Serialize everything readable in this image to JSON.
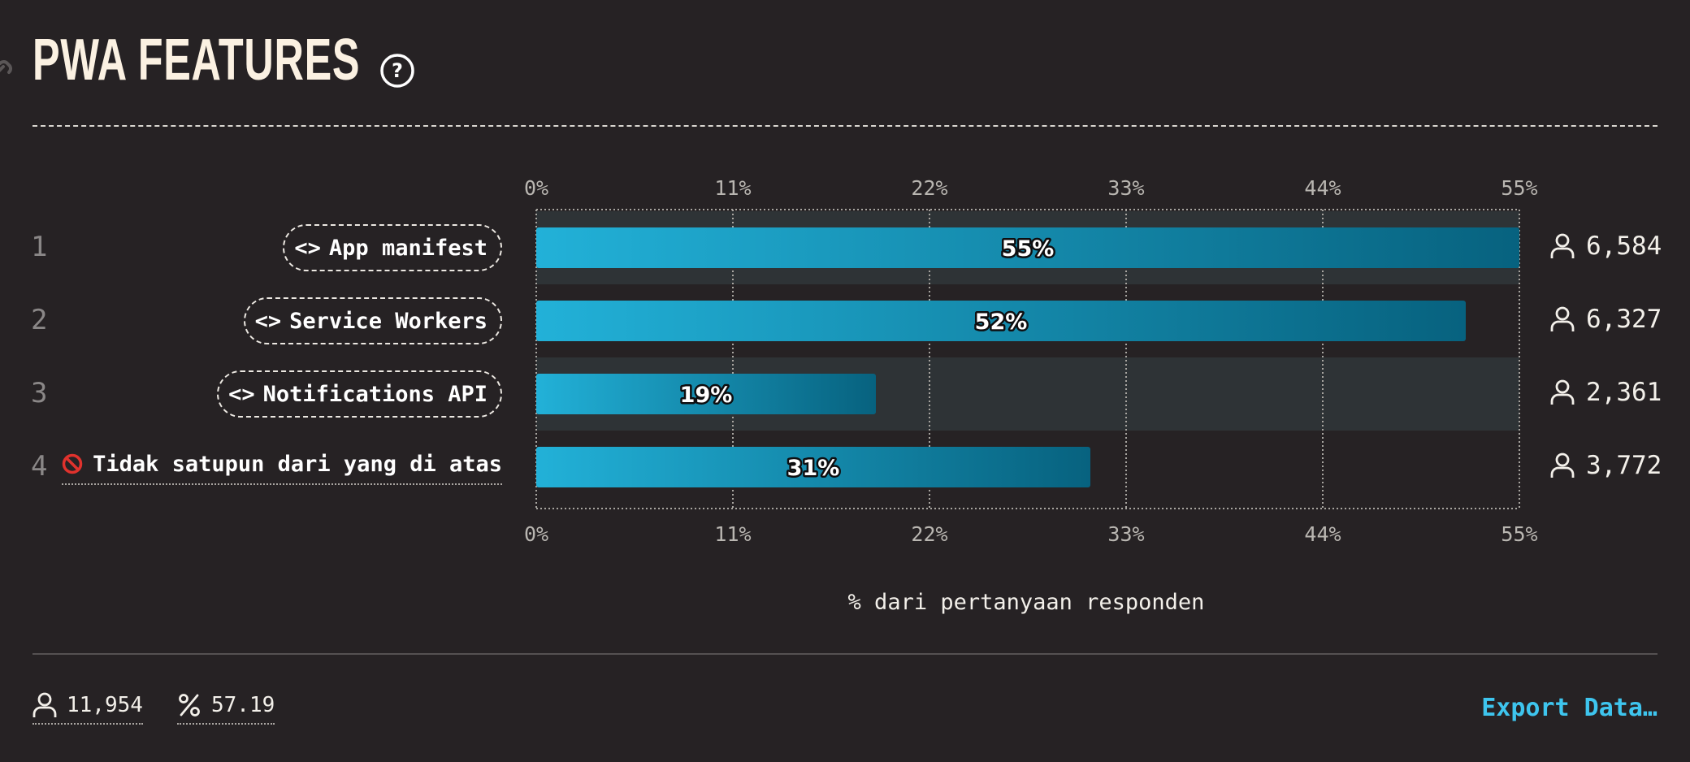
{
  "header": {
    "title": "PWA FEATURES",
    "help_icon": "question-circle-icon",
    "link_icon": "link-icon"
  },
  "chart_data": {
    "type": "bar",
    "orientation": "horizontal",
    "categories": [
      "App manifest",
      "Service Workers",
      "Notifications API",
      "Tidak satupun dari yang di atas"
    ],
    "values": [
      55,
      52,
      19,
      31
    ],
    "value_labels": [
      "55%",
      "52%",
      "19%",
      "31%"
    ],
    "ranks": [
      "1",
      "2",
      "3",
      "4"
    ],
    "respondent_counts": [
      "6,584",
      "6,327",
      "2,361",
      "3,772"
    ],
    "category_icons": [
      "code-brackets-icon",
      "code-brackets-icon",
      "code-brackets-icon",
      "no-entry-icon"
    ],
    "xlim": [
      0,
      55
    ],
    "xticks": [
      "0%",
      "11%",
      "22%",
      "33%",
      "44%",
      "55%"
    ],
    "xlabel": "% dari pertanyaan responden",
    "grid": true,
    "colors": {
      "bar_start": "#22b1d8",
      "bar_end": "#07627f",
      "row_band": "#2e3336",
      "grid": "#a8a5a0"
    }
  },
  "footer": {
    "total_respondents": "11,954",
    "percentage": "57.19",
    "export_label": "Export Data…"
  }
}
